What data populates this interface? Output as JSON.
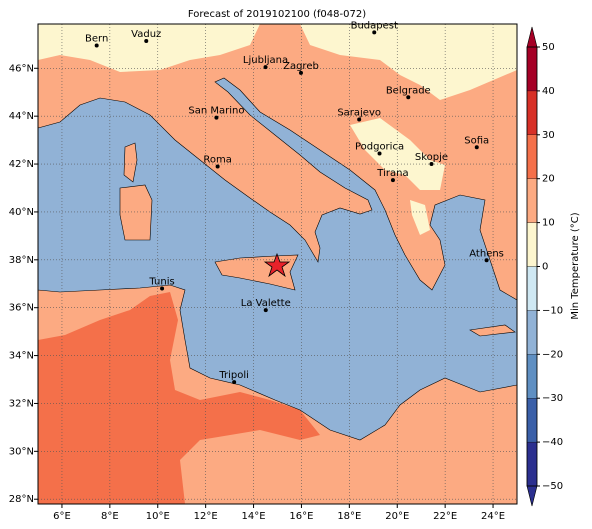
{
  "chart_data": {
    "type": "map",
    "title": "Forecast of 2019102100 (f048-072)",
    "xlim": [
      5,
      25
    ],
    "ylim": [
      27.8,
      47.85
    ],
    "xticks": [
      {
        "value": 6,
        "label": "6°E"
      },
      {
        "value": 8,
        "label": "8°E"
      },
      {
        "value": 10,
        "label": "10°E"
      },
      {
        "value": 12,
        "label": "12°E"
      },
      {
        "value": 14,
        "label": "14°E"
      },
      {
        "value": 16,
        "label": "16°E"
      },
      {
        "value": 18,
        "label": "18°E"
      },
      {
        "value": 20,
        "label": "20°E"
      },
      {
        "value": 22,
        "label": "22°E"
      },
      {
        "value": 24,
        "label": "24°E"
      }
    ],
    "yticks": [
      {
        "value": 28,
        "label": "28°N"
      },
      {
        "value": 30,
        "label": "30°N"
      },
      {
        "value": 32,
        "label": "32°N"
      },
      {
        "value": 34,
        "label": "34°N"
      },
      {
        "value": 36,
        "label": "36°N"
      },
      {
        "value": 38,
        "label": "38°N"
      },
      {
        "value": 40,
        "label": "40°N"
      },
      {
        "value": 42,
        "label": "42°N"
      },
      {
        "value": 44,
        "label": "44°N"
      },
      {
        "value": 46,
        "label": "46°N"
      }
    ],
    "grid": true,
    "cities": [
      {
        "name": "Bern",
        "lon": 7.45,
        "lat": 46.95
      },
      {
        "name": "Vaduz",
        "lon": 9.52,
        "lat": 47.14
      },
      {
        "name": "Budapest",
        "lon": 19.04,
        "lat": 47.5
      },
      {
        "name": "Ljubljana",
        "lon": 14.5,
        "lat": 46.05
      },
      {
        "name": "Zagreb",
        "lon": 15.98,
        "lat": 45.81
      },
      {
        "name": "Belgrade",
        "lon": 20.46,
        "lat": 44.79
      },
      {
        "name": "San Marino",
        "lon": 12.45,
        "lat": 43.94
      },
      {
        "name": "Sarajevo",
        "lon": 18.41,
        "lat": 43.86
      },
      {
        "name": "Roma",
        "lon": 12.5,
        "lat": 41.9
      },
      {
        "name": "Podgorica",
        "lon": 19.26,
        "lat": 42.44
      },
      {
        "name": "Skopje",
        "lon": 21.43,
        "lat": 42.0
      },
      {
        "name": "Sofia",
        "lon": 23.32,
        "lat": 42.7
      },
      {
        "name": "Tirana",
        "lon": 19.82,
        "lat": 41.33
      },
      {
        "name": "Athens",
        "lon": 23.73,
        "lat": 37.98
      },
      {
        "name": "Tunis",
        "lon": 10.18,
        "lat": 36.8
      },
      {
        "name": "La Valette",
        "lon": 14.51,
        "lat": 35.9
      },
      {
        "name": "Tripoli",
        "lon": 13.19,
        "lat": 32.89
      }
    ],
    "colorbar": {
      "label": "Min Temperature (°C)",
      "lim": [
        -50,
        50
      ],
      "extend": "both",
      "ticks": [
        {
          "value": -50,
          "label": "−50"
        },
        {
          "value": -40,
          "label": "−40"
        },
        {
          "value": -30,
          "label": "−30"
        },
        {
          "value": -20,
          "label": "−20"
        },
        {
          "value": -10,
          "label": "−10"
        },
        0,
        10,
        20,
        30,
        40,
        50
      ],
      "colors": [
        "#2b2f8f",
        "#3a5fa8",
        "#5f8fc2",
        "#91b2d6",
        "#cfe8f3",
        "#fdf6cf",
        "#fcaa82",
        "#f4704a",
        "#d73027",
        "#a50026"
      ]
    }
  }
}
